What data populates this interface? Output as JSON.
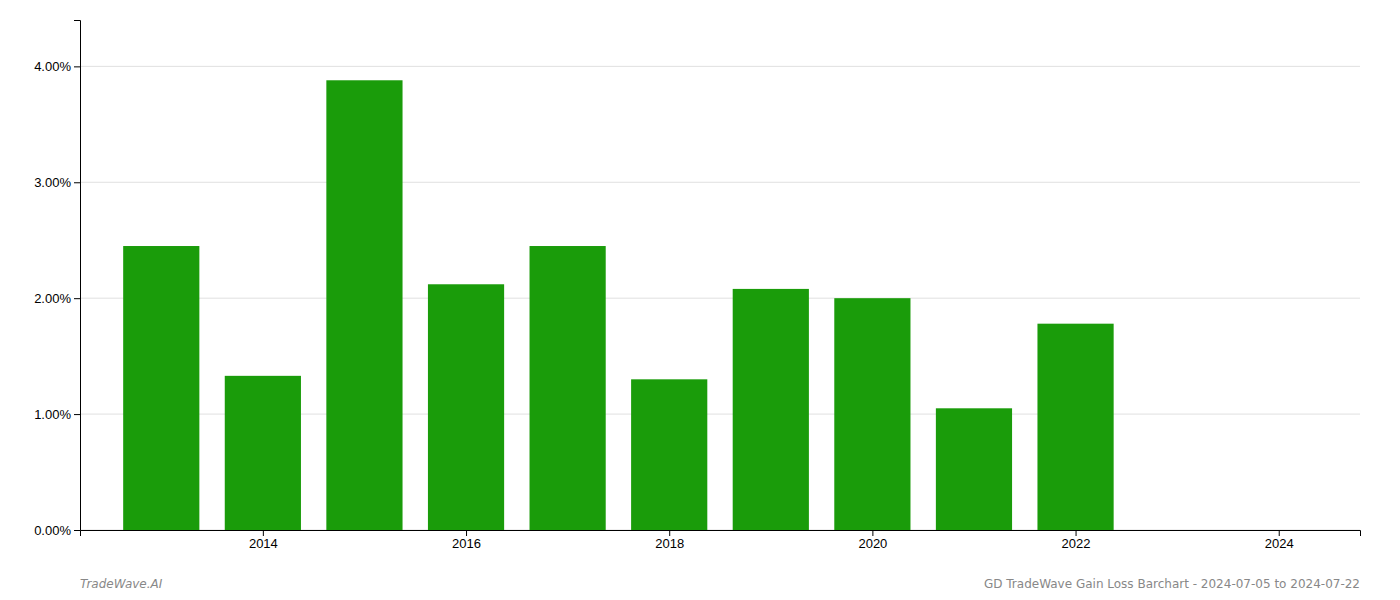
{
  "chart_data": {
    "type": "bar",
    "x": [
      2013,
      2014,
      2015,
      2016,
      2017,
      2018,
      2019,
      2020,
      2021,
      2022
    ],
    "values": [
      0.0245,
      0.0133,
      0.0388,
      0.0212,
      0.0245,
      0.013,
      0.0208,
      0.02,
      0.0105,
      0.0178
    ],
    "color": "#1a9c0a",
    "xlim": [
      2012.2,
      2024.8
    ],
    "xticks": [
      2014,
      2016,
      2018,
      2020,
      2022,
      2024
    ],
    "ylim": [
      0.0,
      0.044
    ],
    "yticks": [
      {
        "value": 0.0,
        "label": "0.00%"
      },
      {
        "value": 0.01,
        "label": "1.00%"
      },
      {
        "value": 0.02,
        "label": "2.00%"
      },
      {
        "value": 0.03,
        "label": "3.00%"
      },
      {
        "value": 0.04,
        "label": "4.00%"
      }
    ],
    "grid": true,
    "annotations": [
      "TradeWave.AI",
      "GD TradeWave Gain Loss Barchart - 2024-07-05 to 2024-07-22"
    ]
  }
}
